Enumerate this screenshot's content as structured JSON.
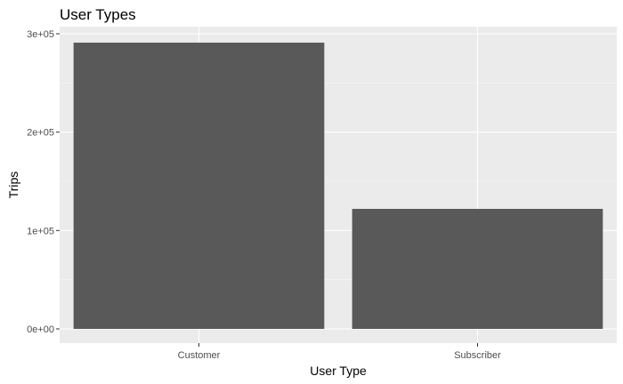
{
  "chart_data": {
    "type": "bar",
    "title": "User Types",
    "xlabel": "User Type",
    "ylabel": "Trips",
    "categories": [
      "Customer",
      "Subscriber"
    ],
    "values": [
      291000,
      122000
    ],
    "ylim": [
      0,
      300000
    ],
    "yticks": [
      0,
      100000,
      200000,
      300000
    ],
    "ytick_labels": [
      "0e+00",
      "1e+05",
      "2e+05",
      "3e+05"
    ],
    "grid": true,
    "legend": "none",
    "colors": {
      "bar": "#595959",
      "panel": "#ebebeb",
      "grid_major": "#ffffff",
      "grid_minor": "#f5f5f5",
      "tick_text": "#4d4d4d"
    }
  }
}
